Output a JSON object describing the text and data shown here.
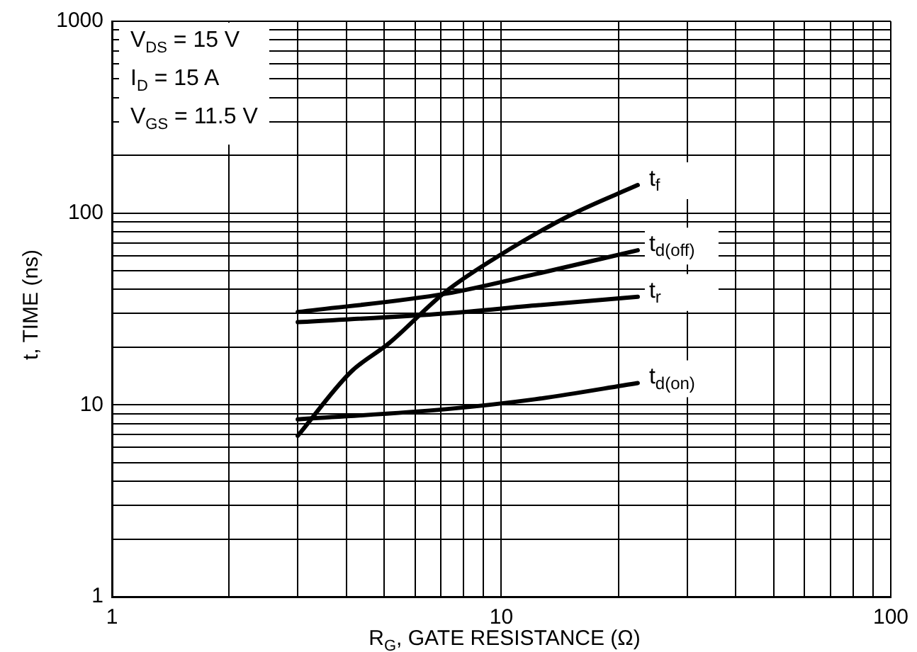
{
  "chart_data": {
    "type": "line",
    "xlabel": "R$_{G}$, GATE RESISTANCE (Ω)",
    "ylabel": "t, TIME (ns)",
    "annotations": [
      "V$_{DS}$ = 15 V",
      "I$_{D}$ = 15 A",
      "V$_{GS}$ = 11.5 V"
    ],
    "log": "xy",
    "grid": true,
    "legend": false,
    "marker": "none",
    "line_style": "solid",
    "xlim": [
      1,
      100
    ],
    "ylim": [
      1,
      1000
    ],
    "xticks": [
      1,
      {
        "value": 2,
        "label": null
      },
      {
        "value": 3,
        "label": null
      },
      {
        "value": 4,
        "label": null
      },
      {
        "value": 5,
        "label": null
      },
      {
        "value": 6,
        "label": null
      },
      {
        "value": 7,
        "label": null
      },
      {
        "value": 8,
        "label": null
      },
      {
        "value": 9,
        "label": null
      },
      10,
      {
        "value": 20,
        "label": null
      },
      {
        "value": 30,
        "label": null
      },
      {
        "value": 40,
        "label": null
      },
      {
        "value": 50,
        "label": null
      },
      {
        "value": 60,
        "label": null
      },
      {
        "value": 70,
        "label": null
      },
      {
        "value": 80,
        "label": null
      },
      {
        "value": 90,
        "label": null
      },
      100
    ],
    "yticks": [
      1,
      {
        "value": 2,
        "label": null
      },
      {
        "value": 3,
        "label": null
      },
      {
        "value": 4,
        "label": null
      },
      {
        "value": 5,
        "label": null
      },
      {
        "value": 6,
        "label": null
      },
      {
        "value": 7,
        "label": null
      },
      {
        "value": 8,
        "label": null
      },
      {
        "value": 9,
        "label": null
      },
      10,
      {
        "value": 20,
        "label": null
      },
      {
        "value": 30,
        "label": null
      },
      {
        "value": 40,
        "label": null
      },
      {
        "value": 50,
        "label": null
      },
      {
        "value": 60,
        "label": null
      },
      {
        "value": 70,
        "label": null
      },
      {
        "value": 80,
        "label": null
      },
      {
        "value": 90,
        "label": null
      },
      100,
      {
        "value": 200,
        "label": null
      },
      {
        "value": 300,
        "label": null
      },
      {
        "value": 400,
        "label": null
      },
      {
        "value": 500,
        "label": null
      },
      {
        "value": 600,
        "label": null
      },
      {
        "value": 700,
        "label": null
      },
      {
        "value": 800,
        "label": null
      },
      {
        "value": 900,
        "label": null
      },
      1000
    ],
    "series": [
      {
        "name": "t$_{f}$",
        "color": "#000000",
        "x": [
          3,
          4.1,
          5.15,
          7.2,
          10,
          15.1,
          22.4
        ],
        "values": [
          6.9,
          14.8,
          21,
          39,
          61,
          98,
          140
        ]
      },
      {
        "name": "t$_{d(off)}$",
        "color": "#000000",
        "x": [
          3,
          7.2,
          12.2,
          22.4
        ],
        "values": [
          30.5,
          38,
          48,
          64
        ]
      },
      {
        "name": "t$_{r}$",
        "color": "#000000",
        "x": [
          3,
          7.2,
          12.2,
          22.4
        ],
        "values": [
          27,
          30,
          33,
          36.6
        ]
      },
      {
        "name": "t$_{d(on)}$",
        "color": "#000000",
        "x": [
          3,
          7.2,
          12.2,
          22.4
        ],
        "values": [
          8.4,
          9.5,
          10.7,
          13
        ]
      }
    ]
  }
}
